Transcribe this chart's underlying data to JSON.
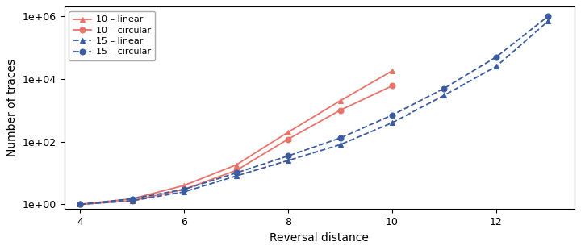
{
  "title": "",
  "xlabel": "Reversal distance",
  "ylabel": "Number of traces",
  "xlim": [
    3.7,
    13.5
  ],
  "ylim_log": [
    0.7,
    2000000
  ],
  "yticks": [
    1,
    100,
    10000,
    1000000
  ],
  "ytick_labels": [
    "1e+00",
    "1e+02",
    "1e+04",
    "1e+06"
  ],
  "xticks": [
    4,
    6,
    8,
    10,
    12
  ],
  "series": [
    {
      "label": "10 – linear",
      "color": "#E8736A",
      "linestyle": "-",
      "marker": "^",
      "dashed": false,
      "x": [
        4,
        5,
        6,
        7,
        8,
        9,
        10
      ],
      "y": [
        1.0,
        1.5,
        4,
        18,
        200,
        2000,
        18000
      ]
    },
    {
      "label": "10 – circular",
      "color": "#E8736A",
      "linestyle": "-",
      "marker": "o",
      "dashed": false,
      "x": [
        4,
        5,
        6,
        7,
        8,
        9,
        10
      ],
      "y": [
        1.0,
        1.3,
        3,
        12,
        120,
        1000,
        6000
      ]
    },
    {
      "label": "15 – linear",
      "color": "#3A5BA0",
      "linestyle": "--",
      "marker": "^",
      "dashed": true,
      "x": [
        4,
        5,
        6,
        7,
        8,
        9,
        10,
        11,
        12,
        13
      ],
      "y": [
        1.0,
        1.3,
        2.5,
        8,
        25,
        80,
        400,
        3000,
        25000,
        700000
      ]
    },
    {
      "label": "15 – circular",
      "color": "#3A5BA0",
      "linestyle": "--",
      "marker": "o",
      "dashed": true,
      "x": [
        4,
        5,
        6,
        7,
        8,
        9,
        10,
        11,
        12,
        13
      ],
      "y": [
        1.0,
        1.5,
        3,
        10,
        35,
        130,
        700,
        5000,
        50000,
        1000000
      ]
    }
  ],
  "background_color": "#ffffff",
  "plot_bg_color": "#ffffff",
  "legend_loc": "upper left",
  "legend_fontsize": 8,
  "axis_fontsize": 10,
  "tick_fontsize": 9,
  "line_width": 1.3,
  "marker_size": 5
}
